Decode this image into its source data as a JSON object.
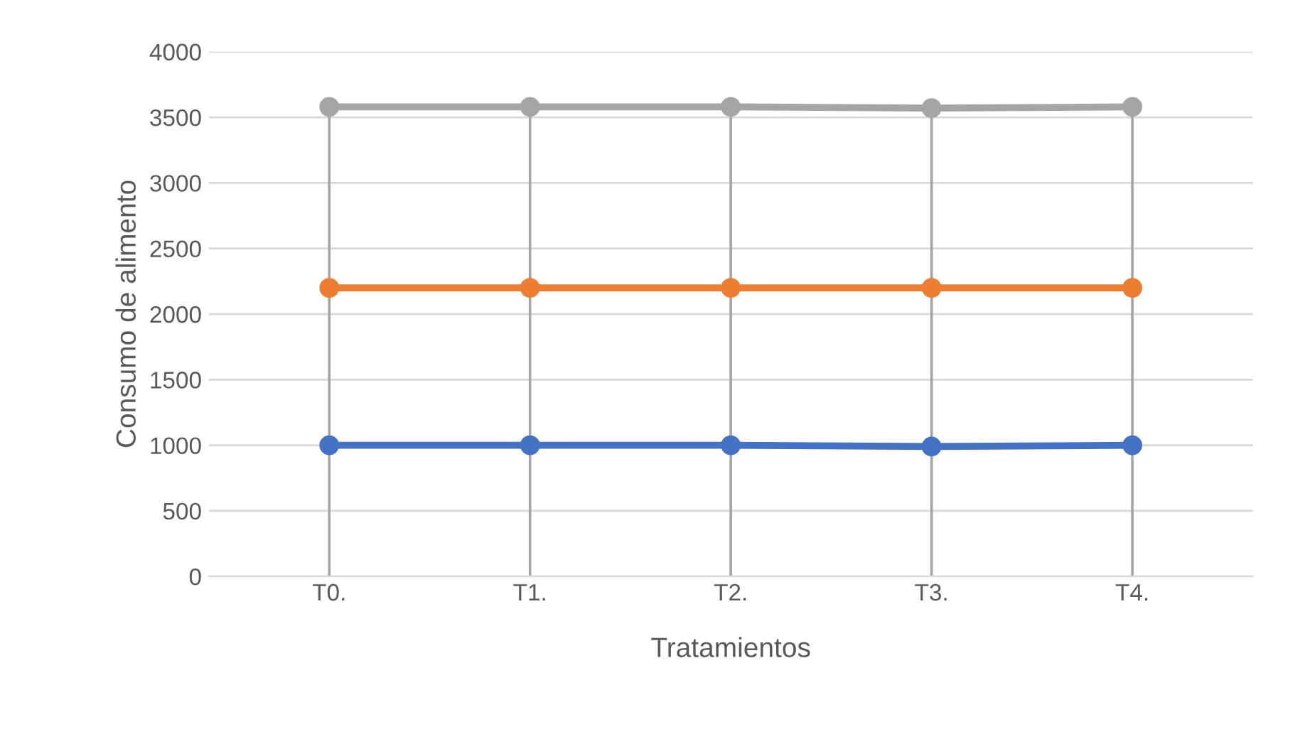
{
  "chart_data": {
    "type": "line",
    "xlabel": "Tratamientos",
    "ylabel": "Consumo de alimento",
    "categories": [
      "T0.",
      "T1.",
      "T2.",
      "T3.",
      "T4."
    ],
    "series": [
      {
        "color": "#4472c4",
        "values": [
          1000,
          1000,
          1000,
          990,
          1000
        ]
      },
      {
        "color": "#ed7d31",
        "values": [
          2200,
          2200,
          2200,
          2200,
          2200
        ]
      },
      {
        "color": "#a5a5a5",
        "values": [
          3580,
          3580,
          3580,
          3570,
          3580
        ]
      }
    ],
    "ylim": [
      0,
      4000
    ],
    "yticks": [
      0,
      500,
      1000,
      1500,
      2000,
      2500,
      3000,
      3500,
      4000
    ],
    "grid": true,
    "marker": "circle",
    "line_style": "solid",
    "legend": false
  }
}
